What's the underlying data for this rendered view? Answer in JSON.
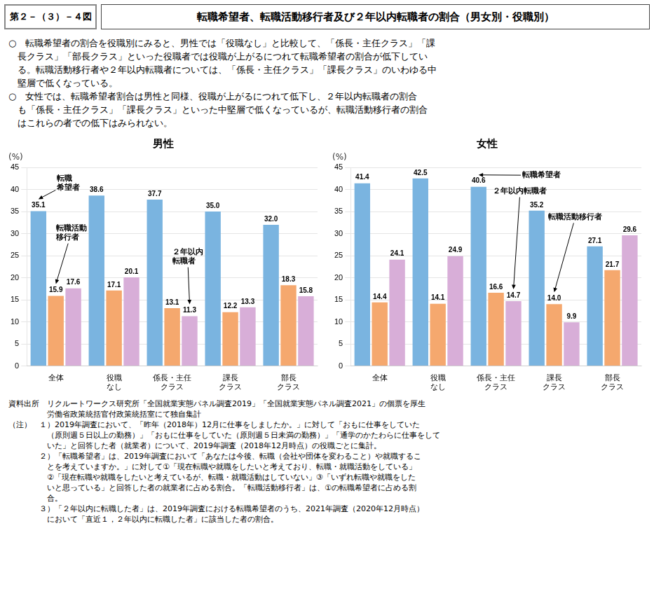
{
  "title": "第２－（３）－４図",
  "subtitle": "転職希望者、転職活動移行者及び２年以内転職者の割合（男女別・役職別）",
  "body_text": [
    "○　転職希望者の割合を役職別にみると、男性では「役職なし」と比較して、「係長・主任クラス」「課",
    "　長クラス」「部長クラス」といった役職者では役職が上がるにつれて転職希望者の割合が低下してい",
    "　る。転職活動移行者や２年以内転職者については、「係長・主任クラス」「課長クラス」のいわゆる中",
    "　堅層で低くなっている。",
    "○　女性では、転職希望者割合は男性と同様、役職が上がるにつれて低下し、２年以内転職者の割合",
    "　も「係長・主任クラス」「課長クラス」といった中堅層で低くなっているが、転職活動移行者の割合",
    "　はこれらの者での低下はみられない。"
  ],
  "notes": [
    "資料出所　リクルートワークス研究所「全国就業実態パネル調査2019」「全国就業実態パネル調査2021」の個票を厚生",
    "　　　　　労働省政策統括官付政策統括室にて独自集計",
    "（注）　１）2019年調査において、「昨年（2018年）12月に仕事をしましたか。」に対して「おもに仕事をしていた",
    "　　　　　（原則週５日以上の勤務）」「おもに仕事をしていた（原則週５日未満の勤務）」「通学のかたわらに仕事をして",
    "　　　　　いた」と回答した者（就業者）について、2019年調査（2018年12月時点）の役職ごとに集計。",
    "　　　　２）「転職希望者」は、2019年調査において「あなたは今後、転職（会社や団体を変わること）や就職するこ",
    "　　　　　とを考えていますか。」に対して①「現在転職や就職をしたいと考えており、転職・就職活動をしている」",
    "　　　　　②「現在転職や就職をしたいと考えているが、転職・就職活動はしていない」③「いずれ転職や就職をした",
    "　　　　　いと思っている」と回答した者の就業者に占める割合。「転職活動移行者」は、①の転職希望者に占める割",
    "　　　　　合。",
    "　　　　３）「２年以内に転職した者」は、2019年調査における転職希望者のうち、2021年調査（2020年12月時点）",
    "　　　　　において「直近１，２年以内に転職した者」に該当した者の割合。"
  ],
  "chart_data": [
    {
      "type": "bar",
      "title": "男性",
      "ylabel": "(%)",
      "categories": [
        "全体",
        "役職\nなし",
        "係長・主任\nクラス",
        "課長\nクラス",
        "部長\nクラス"
      ],
      "series": [
        {
          "color": "#7ab4e0",
          "values": [
            35.1,
            38.6,
            37.7,
            35.0,
            32.0
          ],
          "value_labels": [
            "35.1",
            "38.6",
            "37.7",
            "35.0",
            "32.0"
          ]
        },
        {
          "color": "#f5a86e",
          "values": [
            15.9,
            17.1,
            13.1,
            12.2,
            18.3
          ]
        },
        {
          "color": "#d8aed8",
          "values": [
            17.6,
            20.1,
            11.3,
            13.3,
            15.8
          ]
        }
      ],
      "ylim": [
        0,
        45
      ],
      "yticks": [
        0,
        5,
        10,
        15,
        20,
        25,
        30,
        35,
        40,
        45
      ],
      "grid": true,
      "data_labels": true,
      "annotations": [
        {
          "text": "転職\n希望者",
          "series": 0,
          "category": 0
        },
        {
          "text": "転職活動\n移行者",
          "series": 1,
          "category": 0
        },
        {
          "text": "２年以内\n転職者",
          "series": 2,
          "category": 2
        }
      ]
    },
    {
      "type": "bar",
      "title": "女性",
      "ylabel": "(%)",
      "categories": [
        "全体",
        "役職\nなし",
        "係長・主任\nクラス",
        "課長\nクラス",
        "部長\nクラス"
      ],
      "series": [
        {
          "color": "#7ab4e0",
          "values": [
            41.4,
            42.5,
            40.6,
            35.2,
            27.1
          ]
        },
        {
          "color": "#f5a86e",
          "values": [
            14.4,
            14.1,
            16.6,
            14.0,
            21.7
          ],
          "value_labels": [
            "14.4",
            "14.1",
            "16.6",
            "14.0",
            "21.7"
          ]
        },
        {
          "color": "#d8aed8",
          "values": [
            24.1,
            24.9,
            14.7,
            9.9,
            29.6
          ]
        }
      ],
      "ylim": [
        0,
        45
      ],
      "yticks": [
        0,
        5,
        10,
        15,
        20,
        25,
        30,
        35,
        40,
        45
      ],
      "grid": true,
      "data_labels": true,
      "annotations": [
        {
          "text": "転職希望者",
          "series": 0,
          "category": 2
        },
        {
          "text": "転職活動移行者",
          "series": 1,
          "category": 3
        },
        {
          "text": "２年以内転職者",
          "series": 2,
          "category": 2
        }
      ]
    }
  ]
}
